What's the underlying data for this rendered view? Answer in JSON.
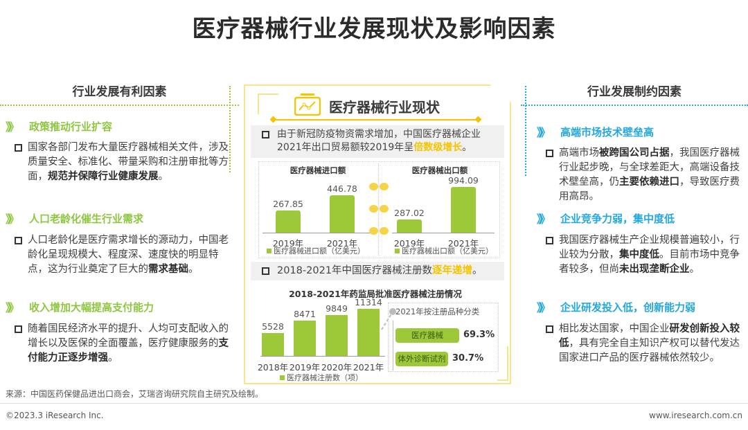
{
  "title": "医疗器械行业发展现状及影响因素",
  "left": {
    "heading": "行业发展有利因素",
    "sections": [
      {
        "title": "政策推动行业扩容",
        "text": [
          {
            "t": "国家各部门发布大量医疗器械相关文件，涉及质量安全、标准化、带量采购和注册审批等方面，"
          },
          {
            "t": "规范并保障行业健康发展",
            "b": true
          },
          {
            "t": "。"
          }
        ]
      },
      {
        "title": "人口老龄化催生行业需求",
        "text": [
          {
            "t": "人口老龄化是医疗需求增长的源动力，中国老龄化呈现规模大、程度深、速度快的明显特点，这为行业奠定了巨大的"
          },
          {
            "t": "需求基础",
            "b": true
          },
          {
            "t": "。"
          }
        ]
      },
      {
        "title": "收入增加大幅提高支付能力",
        "text": [
          {
            "t": "随着国民经济水平的提升、人均可支配收入的增长以及医保的全面覆盖，医疗健康服务的"
          },
          {
            "t": "支付能力正逐步增强",
            "b": true
          },
          {
            "t": "。"
          }
        ]
      }
    ]
  },
  "right": {
    "heading": "行业发展制约因素",
    "sections": [
      {
        "title": "高端市场技术壁垒高",
        "text": [
          {
            "t": "高端市场"
          },
          {
            "t": "被跨国公司占据",
            "b": true
          },
          {
            "t": "，我国医疗器械行业起步晚，与全球差距大，高端设备技术壁垒高，仍"
          },
          {
            "t": "主要依赖进口",
            "b": true
          },
          {
            "t": "，导致医疗费用高昂。"
          }
        ]
      },
      {
        "title": "企业竞争力弱，集中度低",
        "text": [
          {
            "t": "我国医疗器械生产企业规模普遍较小，行业较为分散，"
          },
          {
            "t": "集中度低",
            "b": true
          },
          {
            "t": "。目前市场中竞争者较多，但尚"
          },
          {
            "t": "未出现垄断企业",
            "b": true
          },
          {
            "t": "。"
          }
        ]
      },
      {
        "title": "企业研发投入低，创新能力弱",
        "text": [
          {
            "t": "相比发达国家，中国企业"
          },
          {
            "t": "研发创新投入较低",
            "b": true
          },
          {
            "t": "，具有完全自主知识产权可以替代发达国家进口产品的医疗器械依然较少。"
          }
        ]
      }
    ]
  },
  "center": {
    "title": "医疗器械行业现状",
    "note1": {
      "pre": "由于新冠防疫物资需求增加，中国医疗器械企业2021年出口贸易额较2019年呈",
      "hl": "倍数级增长",
      "post": "。"
    },
    "note2": {
      "pre": "2018-2021年中国医疗器械注册数",
      "hl": "逐年递增",
      "post": "。"
    },
    "breakdown": {
      "title": "2021年按注册品种分类",
      "items": [
        {
          "label": "医疗器械",
          "pct": "69.3%",
          "value": 69.3
        },
        {
          "label": "体外诊断试剂",
          "pct": "30.7%",
          "value": 30.7
        }
      ]
    }
  },
  "chart_data": [
    {
      "type": "bar",
      "title": "医疗器械进口额",
      "categories": [
        "2019年",
        "2021年"
      ],
      "values": [
        267.85,
        446.78
      ],
      "labels": [
        "267.85",
        "446.78"
      ],
      "legend": "医疗器械进口额（亿美元）",
      "ylim": [
        0,
        500
      ]
    },
    {
      "type": "bar",
      "title": "医疗器械出口额",
      "categories": [
        "2019年",
        "2021年"
      ],
      "values": [
        287.02,
        994.09
      ],
      "labels": [
        "287.02",
        "994.09"
      ],
      "legend": "医疗器械出口额（亿美元）",
      "ylim": [
        0,
        1050
      ]
    },
    {
      "type": "bar",
      "title": "2018-2021年药监局批准医疗器械注册情况",
      "categories": [
        "2018年",
        "2019年",
        "2020年",
        "2021年"
      ],
      "values": [
        5528,
        8471,
        9849,
        11314
      ],
      "labels": [
        "5528",
        "8471",
        "9849",
        "11314"
      ],
      "legend": "医疗器械注册数（项）",
      "ylim": [
        0,
        12000
      ]
    }
  ],
  "footer": {
    "source": "来源：中国医药保健品进出口商会，艾瑞咨询研究院自主研究及绘制。",
    "copyright": "©2023.3 iResearch Inc.",
    "url": "www.iresearch.com.cn"
  },
  "colors": {
    "green": "#8dc63f",
    "blue": "#23a7e0",
    "yellow": "#f5c400"
  }
}
